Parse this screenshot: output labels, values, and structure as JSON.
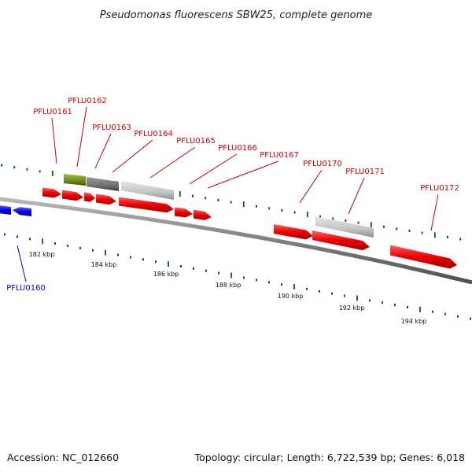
{
  "title": "Pseudomonas fluorescens SBW25, complete genome",
  "footer": {
    "accession": "Accession: NC_012660",
    "summary": "Topology: circular; Length: 6,722,539 bp; Genes: 6,018"
  },
  "colors": {
    "forward_gene": "#ff0000",
    "reverse_gene": "#0000ff",
    "pseudo_gene": "#c8c8c8",
    "rrna_gene": "#6a8a1a",
    "other_gene": "#707070",
    "backbone": "#7a7a7a",
    "ticks": "#006400",
    "forward_label": "#cc0000",
    "reverse_label": "#0000cc"
  },
  "kbp_labels": [
    "182 kbp",
    "184 kbp",
    "186 kbp",
    "188 kbp",
    "190 kbp",
    "192 kbp",
    "194 kbp"
  ],
  "gene_labels": [
    {
      "text": "PFLU0160",
      "strand": "reverse"
    },
    {
      "text": "PFLU0161",
      "strand": "forward"
    },
    {
      "text": "PFLU0162",
      "strand": "forward"
    },
    {
      "text": "PFLU0163",
      "strand": "forward"
    },
    {
      "text": "PFLU0164",
      "strand": "forward"
    },
    {
      "text": "PFLU0165",
      "strand": "forward"
    },
    {
      "text": "PFLU0166",
      "strand": "forward"
    },
    {
      "text": "PFLU0167",
      "strand": "forward"
    },
    {
      "text": "PFLU0170",
      "strand": "forward"
    },
    {
      "text": "PFLU0171",
      "strand": "forward"
    },
    {
      "text": "PFLU0172",
      "strand": "forward"
    }
  ]
}
